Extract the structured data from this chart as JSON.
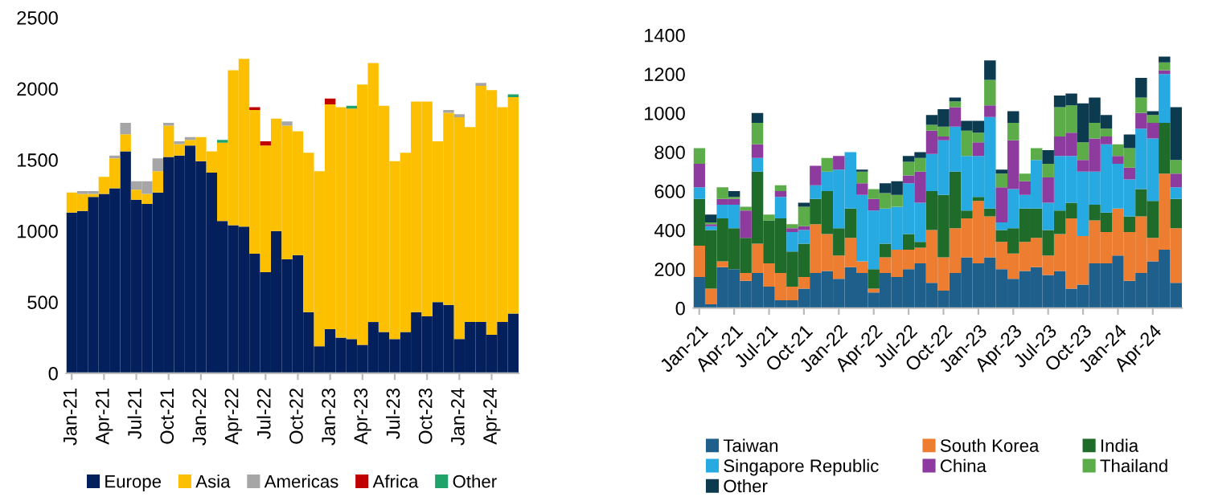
{
  "chart_data": [
    {
      "type": "bar",
      "stacked": true,
      "legend": "bottom",
      "grid": false,
      "categories": [
        "Jan-21",
        null,
        null,
        "Apr-21",
        null,
        null,
        "Jul-21",
        null,
        null,
        "Oct-21",
        null,
        null,
        "Jan-22",
        null,
        null,
        "Apr-22",
        null,
        null,
        "Jul-22",
        null,
        null,
        "Oct-22",
        null,
        null,
        "Jan-23",
        null,
        null,
        "Apr-23",
        null,
        null,
        "Jul-23",
        null,
        null,
        "Oct-23",
        null,
        null,
        "Jan-24",
        null,
        null,
        "Apr-24",
        null,
        null
      ],
      "ylim": [
        0,
        2500
      ],
      "yticks": [
        0,
        500,
        1000,
        1500,
        2000,
        2500
      ],
      "series": [
        {
          "name": "Europe",
          "color": "#03205c",
          "values": [
            1130,
            1140,
            1240,
            1260,
            1300,
            1560,
            1220,
            1190,
            1270,
            1520,
            1530,
            1600,
            1490,
            1410,
            1070,
            1040,
            1030,
            840,
            710,
            1000,
            800,
            830,
            430,
            190,
            310,
            250,
            240,
            200,
            360,
            290,
            240,
            290,
            430,
            400,
            500,
            480,
            240,
            360,
            360,
            270,
            360,
            420
          ]
        },
        {
          "name": "Asia",
          "color": "#fcc000",
          "values": [
            140,
            120,
            20,
            120,
            210,
            120,
            70,
            70,
            150,
            220,
            80,
            40,
            170,
            150,
            550,
            1090,
            1180,
            1010,
            890,
            790,
            940,
            870,
            1120,
            1230,
            1580,
            1620,
            1620,
            1830,
            1820,
            1590,
            1250,
            1260,
            1480,
            1510,
            1130,
            1350,
            1560,
            1370,
            1660,
            1720,
            1510,
            1520
          ]
        },
        {
          "name": "Americas",
          "color": "#a6a6a6",
          "values": [
            0,
            20,
            20,
            0,
            20,
            80,
            60,
            90,
            90,
            20,
            20,
            20,
            0,
            0,
            0,
            0,
            0,
            0,
            0,
            0,
            30,
            0,
            0,
            0,
            0,
            0,
            0,
            0,
            0,
            0,
            0,
            0,
            0,
            0,
            0,
            20,
            20,
            0,
            20,
            0,
            0,
            0
          ]
        },
        {
          "name": "Africa",
          "color": "#c00000",
          "values": [
            0,
            0,
            0,
            0,
            0,
            0,
            0,
            0,
            0,
            0,
            0,
            0,
            0,
            0,
            0,
            0,
            0,
            20,
            30,
            0,
            0,
            0,
            0,
            0,
            40,
            0,
            0,
            0,
            0,
            0,
            0,
            0,
            0,
            0,
            0,
            0,
            0,
            0,
            0,
            0,
            0,
            0
          ]
        },
        {
          "name": "Other",
          "color": "#1fa36a",
          "values": [
            0,
            0,
            0,
            0,
            0,
            0,
            0,
            0,
            0,
            0,
            0,
            0,
            0,
            0,
            20,
            0,
            0,
            0,
            0,
            0,
            0,
            0,
            0,
            0,
            0,
            0,
            20,
            0,
            0,
            0,
            0,
            0,
            0,
            0,
            0,
            0,
            0,
            0,
            0,
            0,
            0,
            20
          ]
        }
      ]
    },
    {
      "type": "bar",
      "stacked": true,
      "legend": "bottom",
      "grid": false,
      "categories": [
        "Jan-21",
        null,
        null,
        "Apr-21",
        null,
        null,
        "Jul-21",
        null,
        null,
        "Oct-21",
        null,
        null,
        "Jan-22",
        null,
        null,
        "Apr-22",
        null,
        null,
        "Jul-22",
        null,
        null,
        "Oct-22",
        null,
        null,
        "Jan-23",
        null,
        null,
        "Apr-23",
        null,
        null,
        "Jul-23",
        null,
        null,
        "Oct-23",
        null,
        null,
        "Jan-24",
        null,
        null,
        "Apr-24",
        null,
        null
      ],
      "ylim": [
        0,
        1400
      ],
      "yticks": [
        0,
        200,
        400,
        600,
        800,
        1000,
        1200,
        1400
      ],
      "series": [
        {
          "name": "Taiwan",
          "color": "#1f5f8b",
          "values": [
            160,
            20,
            210,
            200,
            140,
            180,
            110,
            40,
            40,
            100,
            180,
            190,
            150,
            210,
            180,
            80,
            180,
            160,
            200,
            230,
            130,
            90,
            180,
            260,
            230,
            260,
            200,
            150,
            190,
            210,
            170,
            190,
            100,
            120,
            230,
            230,
            270,
            140,
            180,
            240,
            300,
            130
          ]
        },
        {
          "name": "South Korea",
          "color": "#ed7d31",
          "values": [
            160,
            80,
            30,
            0,
            40,
            150,
            120,
            140,
            70,
            60,
            250,
            190,
            120,
            150,
            60,
            20,
            80,
            140,
            100,
            80,
            270,
            170,
            230,
            200,
            320,
            210,
            140,
            130,
            150,
            150,
            100,
            190,
            360,
            250,
            220,
            160,
            240,
            250,
            290,
            120,
            390,
            280
          ]
        },
        {
          "name": "India",
          "color": "#1e6b2a",
          "values": [
            240,
            300,
            220,
            210,
            180,
            370,
            220,
            280,
            180,
            170,
            130,
            220,
            140,
            150,
            0,
            100,
            70,
            0,
            80,
            30,
            200,
            320,
            290,
            40,
            20,
            40,
            60,
            130,
            170,
            150,
            130,
            120,
            80,
            0,
            80,
            100,
            0,
            80,
            140,
            190,
            260,
            150
          ]
        },
        {
          "name": "Singapore Republic",
          "color": "#27a9e1",
          "values": [
            60,
            20,
            70,
            120,
            0,
            70,
            0,
            110,
            100,
            70,
            70,
            100,
            300,
            290,
            340,
            300,
            180,
            220,
            260,
            200,
            190,
            280,
            230,
            280,
            210,
            470,
            40,
            200,
            70,
            250,
            140,
            280,
            240,
            330,
            170,
            350,
            230,
            190,
            310,
            320,
            250,
            60
          ]
        },
        {
          "name": "China",
          "color": "#8e3ba0",
          "values": [
            120,
            10,
            30,
            30,
            140,
            70,
            0,
            30,
            20,
            20,
            100,
            0,
            70,
            0,
            60,
            60,
            0,
            0,
            40,
            160,
            120,
            20,
            100,
            0,
            70,
            60,
            180,
            250,
            70,
            0,
            130,
            100,
            120,
            60,
            170,
            40,
            40,
            60,
            80,
            80,
            20,
            70
          ]
        },
        {
          "name": "Thailand",
          "color": "#5cad4a",
          "values": [
            80,
            10,
            60,
            10,
            20,
            110,
            30,
            30,
            20,
            100,
            0,
            70,
            0,
            0,
            60,
            50,
            80,
            60,
            70,
            70,
            30,
            50,
            30,
            130,
            50,
            130,
            70,
            90,
            40,
            60,
            70,
            150,
            140,
            90,
            80,
            40,
            60,
            100,
            80,
            40,
            40,
            70
          ]
        },
        {
          "name": "Other",
          "color": "#0c3a4f",
          "values": [
            0,
            40,
            0,
            30,
            0,
            50,
            0,
            0,
            0,
            20,
            0,
            0,
            0,
            0,
            10,
            0,
            50,
            70,
            30,
            30,
            50,
            90,
            20,
            50,
            60,
            100,
            20,
            60,
            0,
            0,
            70,
            60,
            60,
            200,
            130,
            70,
            0,
            70,
            100,
            20,
            30,
            270
          ]
        }
      ]
    }
  ]
}
